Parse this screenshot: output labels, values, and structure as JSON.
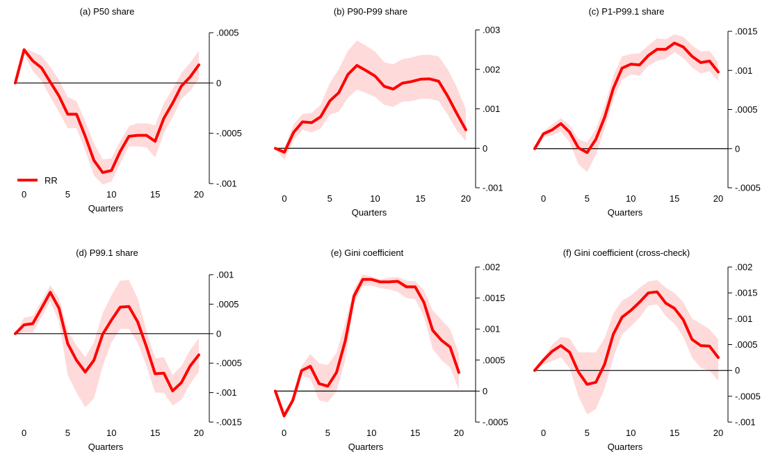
{
  "legend": {
    "label": "RR",
    "color": "#ff0000"
  },
  "colors": {
    "line": "#ff0000",
    "band": "#ffdada",
    "axis": "#000000"
  },
  "chart_data": [
    {
      "type": "line",
      "title": "(a) P50 share",
      "xlabel": "Quarters",
      "ylabel": "",
      "x": [
        -1,
        0,
        1,
        2,
        3,
        4,
        5,
        6,
        7,
        8,
        9,
        10,
        11,
        12,
        13,
        14,
        15,
        16,
        17,
        18,
        19,
        20
      ],
      "xlim": [
        -1,
        20
      ],
      "xticks": [
        "0",
        "5",
        "10",
        "15",
        "20"
      ],
      "ylim": [
        -0.001,
        0.0005
      ],
      "yticks": [
        {
          "value": 0.0005,
          "label": ".0005"
        },
        {
          "value": 0,
          "label": "0"
        },
        {
          "value": -0.0005,
          "label": "-.0005"
        },
        {
          "value": -0.001,
          "label": "-.001"
        }
      ],
      "zero_line": true,
      "legend": "bottom-left",
      "series": [
        {
          "name": "RR",
          "values": [
            0,
            0.00033,
            0.00022,
            0.00015,
            1e-05,
            -0.00013,
            -0.00031,
            -0.00031,
            -0.00053,
            -0.00077,
            -0.00089,
            -0.00087,
            -0.00068,
            -0.00053,
            -0.00052,
            -0.00052,
            -0.00058,
            -0.00035,
            -0.0002,
            -3e-05,
            6e-05,
            0.00018
          ],
          "upper": [
            0,
            0.00035,
            0.00031,
            0.00027,
            0.00016,
            3e-05,
            -0.00014,
            -0.00018,
            -0.00038,
            -0.0006,
            -0.00076,
            -0.00075,
            -0.00058,
            -0.00043,
            -0.0004,
            -0.0004,
            -0.00042,
            -0.0002,
            -6e-05,
            0.0001,
            0.0002,
            0.00032
          ],
          "lower": [
            0,
            0.00028,
            0.00012,
            2e-05,
            -0.00014,
            -0.00029,
            -0.00045,
            -0.00045,
            -0.00067,
            -0.00092,
            -0.00101,
            -0.00098,
            -0.0008,
            -0.00063,
            -0.00063,
            -0.00064,
            -0.00074,
            -0.0005,
            -0.00034,
            -0.00016,
            -8e-05,
            4e-05
          ]
        }
      ]
    },
    {
      "type": "line",
      "title": "(b) P90-P99 share",
      "xlabel": "Quarters",
      "ylabel": "",
      "x": [
        -1,
        0,
        1,
        2,
        3,
        4,
        5,
        6,
        7,
        8,
        9,
        10,
        11,
        12,
        13,
        14,
        15,
        16,
        17,
        18,
        19,
        20
      ],
      "xlim": [
        -1,
        20
      ],
      "xticks": [
        "0",
        "5",
        "10",
        "15",
        "20"
      ],
      "ylim": [
        -0.001,
        0.003
      ],
      "yticks": [
        {
          "value": 0.003,
          "label": ".003"
        },
        {
          "value": 0.002,
          "label": ".002"
        },
        {
          "value": 0.001,
          "label": ".001"
        },
        {
          "value": 0,
          "label": "0"
        },
        {
          "value": -0.001,
          "label": "-.001"
        }
      ],
      "zero_line": true,
      "series": [
        {
          "name": "RR",
          "values": [
            0,
            -0.0001,
            0.0004,
            0.00067,
            0.00065,
            0.0008,
            0.0012,
            0.00141,
            0.00187,
            0.0021,
            0.00197,
            0.00183,
            0.00157,
            0.0015,
            0.00165,
            0.00169,
            0.00175,
            0.00176,
            0.0017,
            0.00132,
            0.00088,
            0.00047
          ],
          "upper": [
            0,
            0.0,
            0.0006,
            0.00087,
            0.0009,
            0.0011,
            0.00165,
            0.00201,
            0.00247,
            0.00273,
            0.0026,
            0.00245,
            0.00218,
            0.00213,
            0.00226,
            0.0023,
            0.00236,
            0.00237,
            0.00233,
            0.002,
            0.00155,
            0.00098
          ],
          "lower": [
            0,
            -0.0003,
            0.0002,
            0.00047,
            0.0004,
            0.0005,
            0.00085,
            0.00093,
            0.00128,
            0.00149,
            0.0014,
            0.0013,
            0.0011,
            0.00105,
            0.00118,
            0.0012,
            0.00125,
            0.00125,
            0.0012,
            0.00085,
            0.00045,
            0.00018
          ]
        }
      ]
    },
    {
      "type": "line",
      "title": "(c) P1-P99.1 share",
      "xlabel": "Quarters",
      "ylabel": "",
      "x": [
        -1,
        0,
        1,
        2,
        3,
        4,
        5,
        6,
        7,
        8,
        9,
        10,
        11,
        12,
        13,
        14,
        15,
        16,
        17,
        18,
        19,
        20
      ],
      "xlim": [
        -1,
        20
      ],
      "xticks": [
        "0",
        "5",
        "10",
        "15",
        "20"
      ],
      "ylim": [
        -0.0005,
        0.0015
      ],
      "yticks": [
        {
          "value": 0.0015,
          "label": ".0015"
        },
        {
          "value": 0.001,
          "label": ".001"
        },
        {
          "value": 0.0005,
          "label": ".0005"
        },
        {
          "value": 0,
          "label": "0"
        },
        {
          "value": -0.0005,
          "label": "-.0005"
        }
      ],
      "zero_line": true,
      "series": [
        {
          "name": "RR",
          "values": [
            0,
            0.00019,
            0.00024,
            0.00032,
            0.00021,
            1e-05,
            -5e-05,
            0.00012,
            0.0004,
            0.00077,
            0.00103,
            0.00108,
            0.00107,
            0.00119,
            0.00127,
            0.00127,
            0.00135,
            0.0013,
            0.00118,
            0.0011,
            0.00112,
            0.00098
          ],
          "upper": [
            0,
            0.00022,
            0.00031,
            0.00039,
            0.0003,
            0.00012,
            8e-05,
            0.00025,
            0.00055,
            0.00093,
            0.00118,
            0.00121,
            0.00122,
            0.00132,
            0.00141,
            0.0014,
            0.00146,
            0.00143,
            0.00132,
            0.00124,
            0.00125,
            0.0011
          ],
          "lower": [
            0,
            0.00015,
            0.00017,
            0.00022,
            8e-05,
            -0.0002,
            -0.0003,
            -8e-05,
            0.00025,
            0.00063,
            0.00088,
            0.00095,
            0.00093,
            0.00106,
            0.00112,
            0.00115,
            0.00123,
            0.00116,
            0.00104,
            0.00096,
            0.00099,
            0.00086
          ]
        }
      ]
    },
    {
      "type": "line",
      "title": "(d) P99.1 share",
      "xlabel": "Quarters",
      "ylabel": "",
      "x": [
        -1,
        0,
        1,
        2,
        3,
        4,
        5,
        6,
        7,
        8,
        9,
        10,
        11,
        12,
        13,
        14,
        15,
        16,
        17,
        18,
        19,
        20
      ],
      "xlim": [
        -1,
        20
      ],
      "xticks": [
        "0",
        "5",
        "10",
        "15",
        "20"
      ],
      "ylim": [
        -0.0015,
        0.001
      ],
      "yticks": [
        {
          "value": 0.001,
          "label": ".001"
        },
        {
          "value": 0.0005,
          "label": ".0005"
        },
        {
          "value": 0,
          "label": "0"
        },
        {
          "value": -0.0005,
          "label": "-.0005"
        },
        {
          "value": -0.001,
          "label": "-.001"
        },
        {
          "value": -0.0015,
          "label": "-.0015"
        }
      ],
      "zero_line": true,
      "series": [
        {
          "name": "RR",
          "values": [
            0,
            0.00015,
            0.00017,
            0.00043,
            0.0007,
            0.00043,
            -0.00017,
            -0.00045,
            -0.00065,
            -0.00045,
            -1e-05,
            0.00023,
            0.00045,
            0.00046,
            0.0002,
            -0.00022,
            -0.00068,
            -0.00067,
            -0.00097,
            -0.00083,
            -0.00055,
            -0.00036
          ],
          "upper": [
            0,
            0.00027,
            0.0003,
            0.00055,
            0.00082,
            0.0006,
            5e-05,
            -0.0002,
            -0.0004,
            -0.00015,
            0.00035,
            0.00065,
            0.0009,
            0.00091,
            0.0006,
            5e-05,
            -0.00042,
            -0.0004,
            -0.0007,
            -0.00055,
            -0.00028,
            -8e-05
          ],
          "lower": [
            0,
            2e-05,
            2e-05,
            0.00028,
            0.00055,
            0.0002,
            -0.0007,
            -0.001,
            -0.00125,
            -0.0011,
            -0.00055,
            -0.00015,
            8e-05,
            8e-05,
            -0.00015,
            -0.00055,
            -0.001,
            -0.001,
            -0.00122,
            -0.00112,
            -0.00085,
            -0.00065
          ]
        }
      ]
    },
    {
      "type": "line",
      "title": "(e) Gini coefficient",
      "xlabel": "Quarters",
      "ylabel": "",
      "x": [
        -1,
        0,
        1,
        2,
        3,
        4,
        5,
        6,
        7,
        8,
        9,
        10,
        11,
        12,
        13,
        14,
        15,
        16,
        17,
        18,
        19,
        20
      ],
      "xlim": [
        -1,
        20
      ],
      "xticks": [
        "0",
        "5",
        "10",
        "15",
        "20"
      ],
      "ylim": [
        -0.0005,
        0.002
      ],
      "yticks": [
        {
          "value": 0.002,
          "label": ".002"
        },
        {
          "value": 0.0015,
          "label": ".0015"
        },
        {
          "value": 0.001,
          "label": ".001"
        },
        {
          "value": 0.0005,
          "label": ".0005"
        },
        {
          "value": 0,
          "label": "0"
        },
        {
          "value": -0.0005,
          "label": "-.0005"
        }
      ],
      "zero_line": true,
      "series": [
        {
          "name": "RR",
          "values": [
            0,
            -0.0004,
            -0.00015,
            0.00033,
            0.0004,
            0.00012,
            8e-05,
            0.0003,
            0.00081,
            0.00153,
            0.0018,
            0.0018,
            0.00176,
            0.00176,
            0.00177,
            0.00168,
            0.00168,
            0.00143,
            0.00098,
            0.00082,
            0.00071,
            0.0003
          ],
          "upper": [
            0,
            -0.00035,
            -8e-05,
            0.0004,
            0.0006,
            0.00045,
            0.00042,
            0.00062,
            0.0011,
            0.00165,
            0.00188,
            0.00185,
            0.0018,
            0.00183,
            0.00184,
            0.00178,
            0.00177,
            0.00163,
            0.0013,
            0.00115,
            0.001,
            0.0006
          ],
          "lower": [
            0,
            -0.00045,
            -0.0002,
            0.00025,
            0.0002,
            -0.00015,
            -0.00018,
            0.0,
            0.0005,
            0.0014,
            0.0017,
            0.0017,
            0.00166,
            0.00164,
            0.0016,
            0.0015,
            0.00148,
            0.0012,
            0.00068,
            0.0005,
            0.00038,
            2e-05
          ]
        }
      ]
    },
    {
      "type": "line",
      "title": "(f) Gini coefficient (cross-check)",
      "xlabel": "Quarters",
      "ylabel": "",
      "x": [
        -1,
        0,
        1,
        2,
        3,
        4,
        5,
        6,
        7,
        8,
        9,
        10,
        11,
        12,
        13,
        14,
        15,
        16,
        17,
        18,
        19,
        20
      ],
      "xlim": [
        -1,
        20
      ],
      "xticks": [
        "0",
        "5",
        "10",
        "15",
        "20"
      ],
      "ylim": [
        -0.001,
        0.002
      ],
      "yticks": [
        {
          "value": 0.002,
          "label": ".002"
        },
        {
          "value": 0.0015,
          "label": ".0015"
        },
        {
          "value": 0.001,
          "label": ".001"
        },
        {
          "value": 0.0005,
          "label": ".0005"
        },
        {
          "value": 0,
          "label": "0"
        },
        {
          "value": -0.0005,
          "label": "-.0005"
        },
        {
          "value": -0.001,
          "label": "-.001"
        }
      ],
      "zero_line": true,
      "series": [
        {
          "name": "RR",
          "values": [
            0,
            0.0002,
            0.00037,
            0.00048,
            0.00035,
            -3e-05,
            -0.00027,
            -0.00023,
            0.00012,
            0.0007,
            0.00103,
            0.00116,
            0.00132,
            0.0015,
            0.00152,
            0.0013,
            0.0012,
            0.00098,
            0.0006,
            0.00048,
            0.00047,
            0.00025
          ],
          "upper": [
            0,
            0.00025,
            0.0005,
            0.00065,
            0.00062,
            0.00035,
            0.00035,
            0.00035,
            0.00062,
            0.0011,
            0.00135,
            0.00145,
            0.0016,
            0.00172,
            0.00175,
            0.0016,
            0.0015,
            0.00132,
            0.001,
            0.0009,
            0.0008,
            0.0006
          ],
          "lower": [
            0,
            0.00012,
            0.00018,
            0.00025,
            5e-05,
            -0.0005,
            -0.00085,
            -0.00075,
            -0.00035,
            0.00025,
            0.0007,
            0.00085,
            0.00102,
            0.00125,
            0.00128,
            0.00105,
            0.0009,
            0.00065,
            0.00025,
            5e-05,
            0.0,
            -0.0002
          ]
        }
      ]
    }
  ]
}
